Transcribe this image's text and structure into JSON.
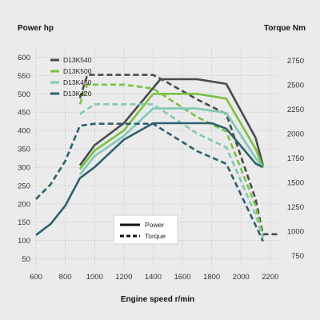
{
  "chart_data": {
    "type": "line",
    "ylabel_left": "Power hp",
    "ylabel_right": "Torque Nm",
    "xlabel": "Engine speed r/min",
    "x_ticks": [
      600,
      800,
      1000,
      1200,
      1400,
      1600,
      1800,
      2000,
      2200
    ],
    "y_left_ticks": [
      50,
      100,
      150,
      200,
      250,
      300,
      350,
      400,
      450,
      500,
      550,
      600
    ],
    "y_right_ticks": [
      750,
      1000,
      1250,
      1500,
      1750,
      2000,
      2250,
      2500,
      2750
    ],
    "xlim": [
      600,
      2250
    ],
    "ylim_left": [
      25,
      625
    ],
    "ylim_right": [
      625,
      2875
    ],
    "grid": true,
    "legend_position": "top-left",
    "series": [
      {
        "name": "D13K540",
        "color": "#4a4a4a",
        "power": [
          [
            900,
            305
          ],
          [
            1000,
            360
          ],
          [
            1200,
            420
          ],
          [
            1450,
            540
          ],
          [
            1700,
            540
          ],
          [
            1900,
            527
          ],
          [
            2100,
            380
          ],
          [
            2150,
            305
          ]
        ],
        "torque": [
          [
            900,
            2360
          ],
          [
            950,
            2600
          ],
          [
            1400,
            2600
          ],
          [
            1500,
            2520
          ],
          [
            1700,
            2350
          ],
          [
            1900,
            2200
          ],
          [
            2100,
            1330
          ],
          [
            2150,
            970
          ],
          [
            2250,
            970
          ]
        ]
      },
      {
        "name": "D13K500",
        "color": "#7bc043",
        "power": [
          [
            900,
            295
          ],
          [
            1000,
            345
          ],
          [
            1200,
            400
          ],
          [
            1400,
            500
          ],
          [
            1700,
            500
          ],
          [
            1900,
            487
          ],
          [
            2100,
            350
          ],
          [
            2150,
            300
          ]
        ],
        "torque": [
          [
            900,
            2300
          ],
          [
            950,
            2500
          ],
          [
            1200,
            2500
          ],
          [
            1400,
            2460
          ],
          [
            1700,
            2170
          ],
          [
            1900,
            2020
          ],
          [
            2100,
            1260
          ],
          [
            2150,
            950
          ]
        ]
      },
      {
        "name": "D13K460",
        "color": "#7fc8b5",
        "power": [
          [
            900,
            280
          ],
          [
            1000,
            330
          ],
          [
            1200,
            385
          ],
          [
            1400,
            460
          ],
          [
            1700,
            460
          ],
          [
            1900,
            448
          ],
          [
            2100,
            325
          ],
          [
            2150,
            300
          ]
        ],
        "torque": [
          [
            900,
            2200
          ],
          [
            1000,
            2300
          ],
          [
            1400,
            2300
          ],
          [
            1700,
            2000
          ],
          [
            1900,
            1860
          ],
          [
            2100,
            1170
          ],
          [
            2150,
            930
          ]
        ]
      },
      {
        "name": "D13K420",
        "color": "#2f5f6e",
        "power": [
          [
            600,
            115
          ],
          [
            700,
            145
          ],
          [
            800,
            195
          ],
          [
            900,
            270
          ],
          [
            1000,
            300
          ],
          [
            1200,
            375
          ],
          [
            1400,
            420
          ],
          [
            1800,
            420
          ],
          [
            1900,
            405
          ],
          [
            2100,
            310
          ],
          [
            2150,
            300
          ]
        ],
        "torque": [
          [
            600,
            1330
          ],
          [
            700,
            1480
          ],
          [
            800,
            1720
          ],
          [
            900,
            2080
          ],
          [
            1000,
            2100
          ],
          [
            1400,
            2100
          ],
          [
            1700,
            1820
          ],
          [
            1900,
            1690
          ],
          [
            2100,
            1060
          ],
          [
            2150,
            900
          ]
        ]
      }
    ],
    "line_style_legend": [
      {
        "label": "Power",
        "style": "solid"
      },
      {
        "label": "Torque",
        "style": "dashed"
      }
    ]
  }
}
